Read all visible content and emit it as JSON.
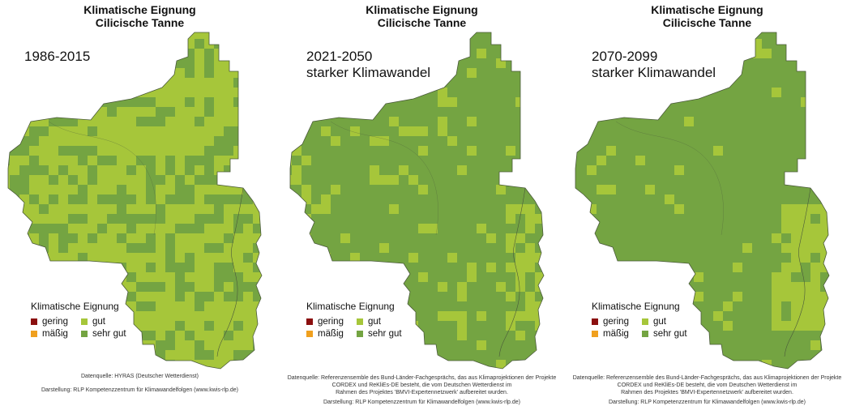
{
  "colors": {
    "gering": "#8b0f0f",
    "maessig": "#f0a01e",
    "gut": "#a6c63a",
    "sehr_gut": "#74a442",
    "border": "#4a5a3a"
  },
  "panels": [
    {
      "title_line1": "Klimatische Eignung",
      "title_line2": "Cilicische Tanne",
      "period_line1": "1986-2015",
      "period_line2": "",
      "base": "gut",
      "spots": "sehr_gut",
      "spot_density": 0.35,
      "legend": {
        "title": "Klimatische Eignung",
        "items": [
          {
            "key": "gering",
            "label": "gering"
          },
          {
            "key": "gut",
            "label": "gut"
          },
          {
            "key": "maessig",
            "label": "mäßig"
          },
          {
            "key": "sehr_gut",
            "label": "sehr gut"
          }
        ]
      },
      "credits": [
        "Datenquelle: HYRAS (Deutscher Wetterdienst)",
        "Darstellung: RLP Kompetenzzentrum für Klimawandelfolgen (www.kwis-rlp.de)"
      ]
    },
    {
      "title_line1": "Klimatische Eignung",
      "title_line2": "Cilicische Tanne",
      "period_line1": "2021-2050",
      "period_line2": "starker Klimawandel",
      "base": "sehr_gut",
      "spots": "gut",
      "spot_density": 0.12,
      "legend": {
        "title": "Klimatische Eignung",
        "items": [
          {
            "key": "gering",
            "label": "gering"
          },
          {
            "key": "gut",
            "label": "gut"
          },
          {
            "key": "maessig",
            "label": "mäßig"
          },
          {
            "key": "sehr_gut",
            "label": "sehr gut"
          }
        ]
      },
      "credits": [
        "Datenquelle: Referenzensemble des Bund-Länder-Fachgesprächs, das aus Klimaprojektionen der Projekte",
        "CORDEX und ReKliEs-DE besteht, die vom Deutschen Wetterdienst im",
        "Rahmen des Projektes 'BMVI-Expertennetzwerk' aufbereitet wurden.",
        "Darstellung: RLP Kompetenzzentrum für Klimawandelfolgen (www.kwis-rlp.de)"
      ]
    },
    {
      "title_line1": "Klimatische Eignung",
      "title_line2": "Cilicische Tanne",
      "period_line1": "2070-2099",
      "period_line2": "starker Klimawandel",
      "base": "sehr_gut",
      "spots": "gut",
      "spot_density": 0.05,
      "legend": {
        "title": "Klimatische Eignung",
        "items": [
          {
            "key": "gering",
            "label": "gering"
          },
          {
            "key": "gut",
            "label": "gut"
          },
          {
            "key": "maessig",
            "label": "mäßig"
          },
          {
            "key": "sehr_gut",
            "label": "sehr gut"
          }
        ]
      },
      "credits": [
        "Datenquelle: Referenzensemble des Bund-Länder-Fachgesprächs, das aus Klimaprojektionen der Projekte",
        "CORDEX und ReKliEs-DE besteht, die vom Deutschen Wetterdienst im",
        "Rahmen des Projektes 'BMVI-Expertennetzwerk' aufbereitet wurden.",
        "Darstellung: RLP Kompetenzzentrum für Klimawandelfolgen (www.kwis-rlp.de)"
      ]
    }
  ]
}
